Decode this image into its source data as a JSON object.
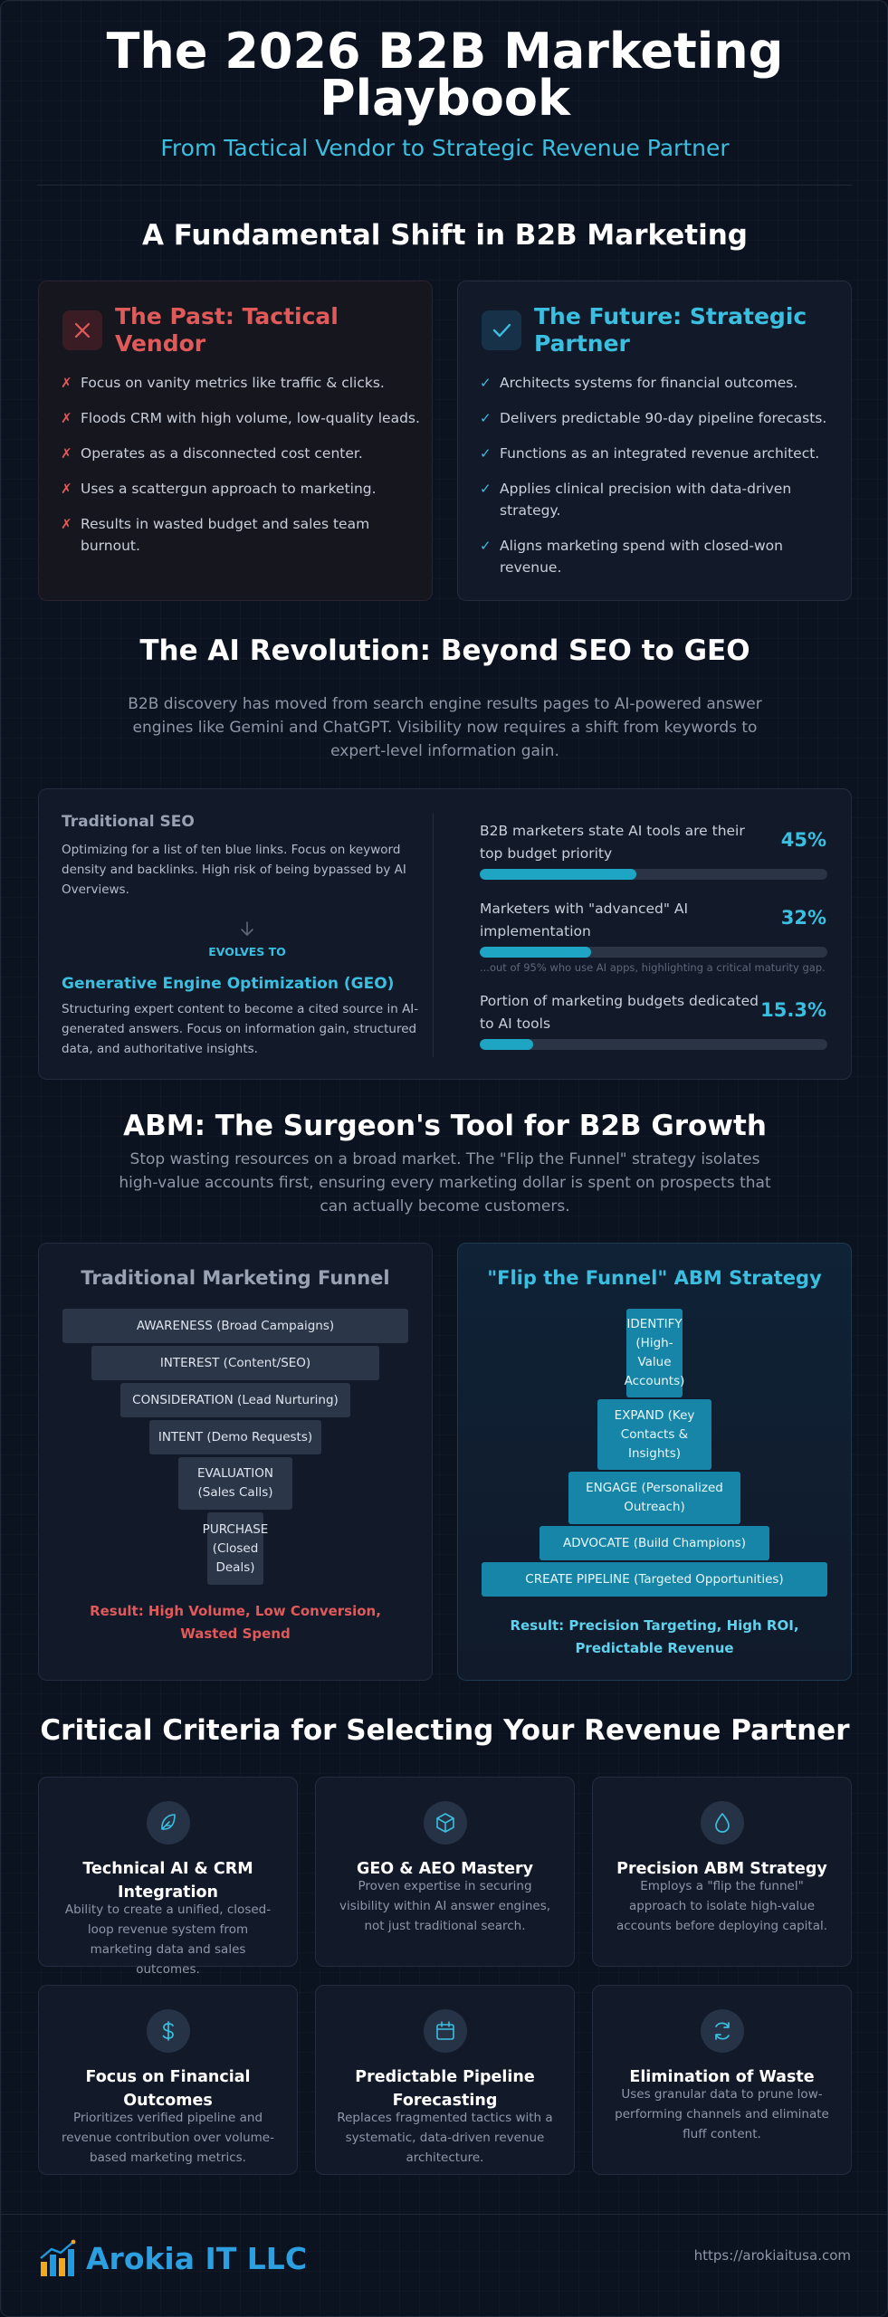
{
  "header": {
    "title_line1": "The 2026 B2B Marketing",
    "title_line2": "Playbook",
    "subtitle": "From Tactical Vendor to Strategic Revenue Partner"
  },
  "shift": {
    "title": "A Fundamental Shift in B2B Marketing",
    "past": {
      "heading": "The Past: Tactical Vendor",
      "items": [
        "Focus on vanity metrics like traffic & clicks.",
        "Floods CRM with high volume, low-quality leads.",
        "Operates as a disconnected cost center.",
        "Uses a scattergun approach to marketing.",
        "Results in wasted budget and sales team burnout."
      ]
    },
    "future": {
      "heading": "The Future: Strategic Partner",
      "items": [
        "Architects systems for financial outcomes.",
        "Delivers predictable 90-day pipeline forecasts.",
        "Functions as an integrated revenue architect.",
        "Applies clinical precision with data-driven strategy.",
        "Aligns marketing spend with closed-won revenue."
      ]
    }
  },
  "ai": {
    "title": "The AI Revolution: Beyond SEO to GEO",
    "description": "B2B discovery has moved from search engine results pages to AI-powered answer engines like Gemini and ChatGPT. Visibility now requires a shift from keywords to expert-level information gain.",
    "seo_label": "Traditional SEO",
    "seo_text": "Optimizing for a list of ten blue links. Focus on keyword density and backlinks. High risk of being bypassed by AI Overviews.",
    "evolves": "EVOLVES TO",
    "geo_label": "Generative Engine Optimization (GEO)",
    "geo_text": "Structuring expert content to become a cited source in AI-generated answers. Focus on information gain, structured data, and authoritative insights.",
    "stats": [
      {
        "label": "B2B marketers state AI tools are their top budget priority",
        "value": "45%",
        "fraction": 0.45,
        "note": ""
      },
      {
        "label": "Marketers with \"advanced\" AI implementation",
        "value": "32%",
        "fraction": 0.32,
        "note": "...out of 95% who use AI apps, highlighting a critical maturity gap."
      },
      {
        "label": "Portion of marketing budgets dedicated to AI tools",
        "value": "15.3%",
        "fraction": 0.153,
        "note": ""
      }
    ]
  },
  "abm": {
    "title": "ABM: The Surgeon's Tool for B2B Growth",
    "description": "Stop wasting resources on a broad market. The \"Flip the Funnel\" strategy isolates high-value accounts first, ensuring every marketing dollar is spent on prospects that can actually become customers.",
    "traditional": {
      "title": "Traditional Marketing Funnel",
      "stages": [
        "AWARENESS (Broad Campaigns)",
        "INTEREST (Content/SEO)",
        "CONSIDERATION (Lead Nurturing)",
        "INTENT (Demo Requests)",
        "EVALUATION (Sales Calls)",
        "PURCHASE (Closed Deals)"
      ],
      "result": "Result: High Volume, Low Conversion, Wasted Spend"
    },
    "flipped": {
      "title": "\"Flip the Funnel\" ABM Strategy",
      "stages": [
        "IDENTIFY (High-Value Accounts)",
        "EXPAND (Key Contacts & Insights)",
        "ENGAGE (Personalized Outreach)",
        "ADVOCATE (Build Champions)",
        "CREATE PIPELINE (Targeted Opportunities)"
      ],
      "result": "Result: Precision Targeting, High ROI, Predictable Revenue"
    }
  },
  "criteria": {
    "title": "Critical Criteria for Selecting Your Revenue Partner",
    "items": [
      {
        "icon": "feather-icon",
        "title": "Technical AI & CRM Integration",
        "text": "Ability to create a unified, closed-loop revenue system from marketing data and sales outcomes."
      },
      {
        "icon": "cube-icon",
        "title": "GEO & AEO Mastery",
        "text": "Proven expertise in securing visibility within AI answer engines, not just traditional search."
      },
      {
        "icon": "droplet-icon",
        "title": "Precision ABM Strategy",
        "text": "Employs a \"flip the funnel\" approach to isolate high-value accounts before deploying capital."
      },
      {
        "icon": "dollar-icon",
        "title": "Focus on Financial Outcomes",
        "text": "Prioritizes verified pipeline and revenue contribution over volume-based marketing metrics."
      },
      {
        "icon": "calendar-icon",
        "title": "Predictable Pipeline Forecasting",
        "text": "Replaces fragmented tactics with a systematic, data-driven revenue architecture."
      },
      {
        "icon": "refresh-icon",
        "title": "Elimination of Waste",
        "text": "Uses granular data to prune low-performing channels and eliminate fluff content."
      }
    ]
  },
  "footer": {
    "logo": "Arokia IT LLC",
    "url": "https://arokiaitusa.com"
  },
  "colors": {
    "accent": "#3bbfe0",
    "past_red": "#e05a5a",
    "bar": "#1ea5c4",
    "abm_stage": "#1785a8"
  }
}
